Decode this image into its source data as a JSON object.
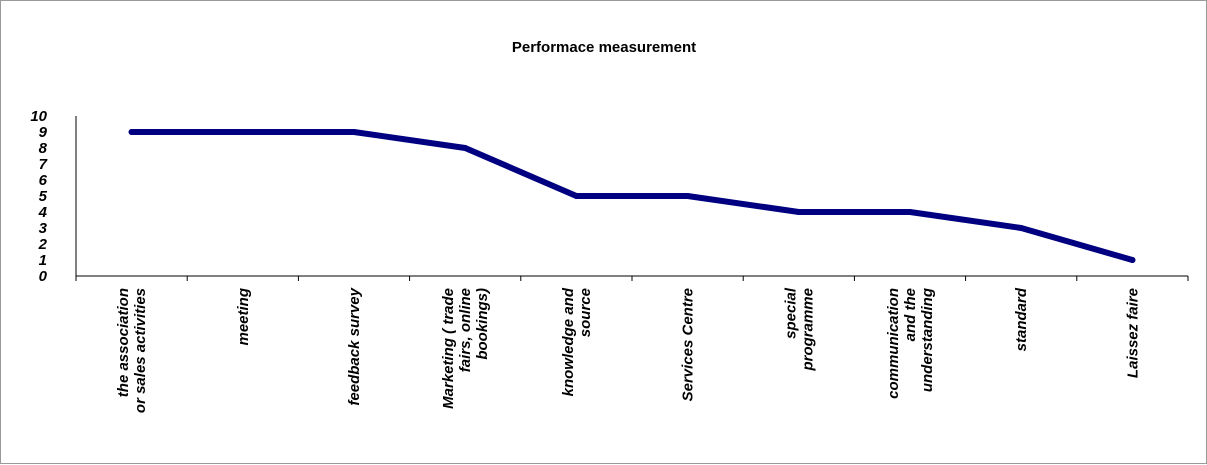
{
  "chart_data": {
    "type": "line",
    "title": "Performace measurement",
    "xlabel": "",
    "ylabel": "",
    "ylim": [
      0,
      10
    ],
    "yticks": [
      "0",
      "1",
      "2",
      "3",
      "4",
      "5",
      "6",
      "7",
      "8",
      "9",
      "10"
    ],
    "categories": [
      [
        "the association",
        "or sales activities"
      ],
      [
        "meeting"
      ],
      [
        "feedback survey"
      ],
      [
        "Marketing ( trade",
        "fairs, online",
        "bookings)"
      ],
      [
        "knowledge and",
        "source"
      ],
      [
        "Services Centre"
      ],
      [
        "special",
        "programme"
      ],
      [
        "communication",
        "and the",
        "understanding"
      ],
      [
        "standard"
      ],
      [
        "Laissez faire"
      ]
    ],
    "series": [
      {
        "values": [
          9,
          9,
          9,
          8,
          5,
          5,
          4,
          4,
          3,
          1
        ],
        "color": "#000080"
      }
    ],
    "grid": false,
    "legend": "none"
  }
}
